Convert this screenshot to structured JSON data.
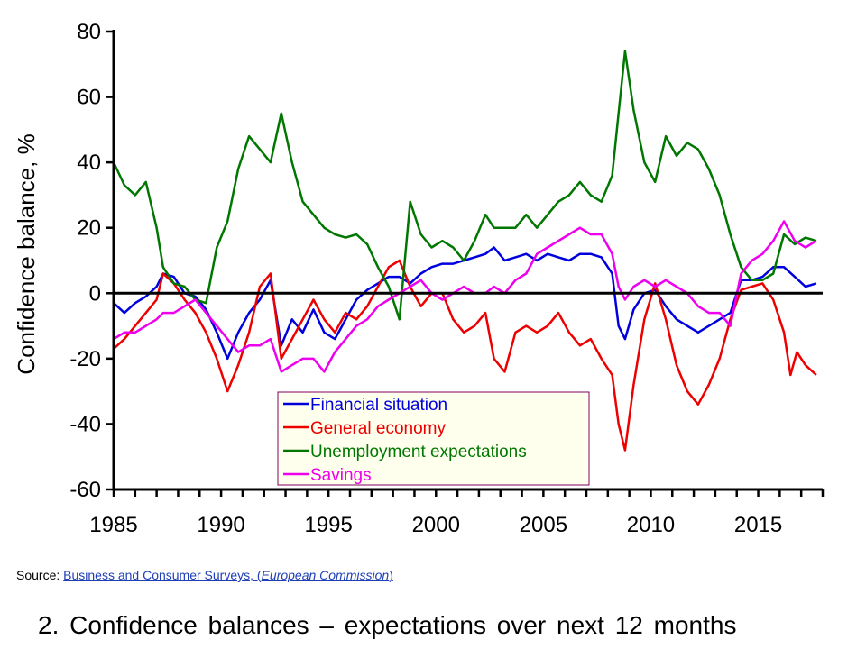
{
  "chart_data": {
    "type": "line",
    "ylabel": "Confidence balance, %",
    "xlabel": "",
    "xlim": [
      1985,
      2018
    ],
    "ylim": [
      -60,
      80
    ],
    "y_ticks": [
      80,
      60,
      40,
      20,
      0,
      -20,
      -40,
      -60
    ],
    "y_tick_labels": [
      "80",
      "60",
      "40",
      "20",
      "0",
      "-20",
      "-40",
      "-60"
    ],
    "x_ticks": [
      1985,
      1990,
      1995,
      2000,
      2005,
      2010,
      2015
    ],
    "x_tick_labels": [
      "1985",
      "1990",
      "1995",
      "2000",
      "2005",
      "2010",
      "2015"
    ],
    "grid": false,
    "legend_position": "bottom-center",
    "series": [
      {
        "name": "Financial situation",
        "color": "#0000dd",
        "points": [
          [
            1985,
            -3
          ],
          [
            1985.5,
            -6
          ],
          [
            1986,
            -3
          ],
          [
            1986.5,
            -1
          ],
          [
            1987,
            2
          ],
          [
            1987.3,
            6
          ],
          [
            1987.8,
            5
          ],
          [
            1988.3,
            0
          ],
          [
            1988.8,
            -1
          ],
          [
            1989.3,
            -5
          ],
          [
            1989.8,
            -12
          ],
          [
            1990.3,
            -20
          ],
          [
            1990.8,
            -12
          ],
          [
            1991.3,
            -6
          ],
          [
            1991.8,
            -2
          ],
          [
            1992.3,
            4
          ],
          [
            1992.8,
            -16
          ],
          [
            1993.3,
            -8
          ],
          [
            1993.8,
            -12
          ],
          [
            1994.3,
            -5
          ],
          [
            1994.8,
            -12
          ],
          [
            1995.3,
            -14
          ],
          [
            1995.8,
            -8
          ],
          [
            1996.3,
            -2
          ],
          [
            1996.8,
            1
          ],
          [
            1997.3,
            3
          ],
          [
            1997.8,
            5
          ],
          [
            1998.3,
            5
          ],
          [
            1998.8,
            3
          ],
          [
            1999.3,
            6
          ],
          [
            1999.8,
            8
          ],
          [
            2000.3,
            9
          ],
          [
            2000.8,
            9
          ],
          [
            2001.3,
            10
          ],
          [
            2001.8,
            11
          ],
          [
            2002.3,
            12
          ],
          [
            2002.7,
            14
          ],
          [
            2003.2,
            10
          ],
          [
            2003.7,
            11
          ],
          [
            2004.2,
            12
          ],
          [
            2004.7,
            10
          ],
          [
            2005.2,
            12
          ],
          [
            2005.7,
            11
          ],
          [
            2006.2,
            10
          ],
          [
            2006.7,
            12
          ],
          [
            2007.2,
            12
          ],
          [
            2007.7,
            11
          ],
          [
            2008.2,
            6
          ],
          [
            2008.5,
            -10
          ],
          [
            2008.8,
            -14
          ],
          [
            2009.2,
            -5
          ],
          [
            2009.7,
            0
          ],
          [
            2010.2,
            1
          ],
          [
            2010.7,
            -4
          ],
          [
            2011.2,
            -8
          ],
          [
            2011.7,
            -10
          ],
          [
            2012.2,
            -12
          ],
          [
            2012.7,
            -10
          ],
          [
            2013.2,
            -8
          ],
          [
            2013.7,
            -6
          ],
          [
            2014.2,
            4
          ],
          [
            2014.7,
            4
          ],
          [
            2015.2,
            5
          ],
          [
            2015.7,
            8
          ],
          [
            2016.2,
            8
          ],
          [
            2016.7,
            5
          ],
          [
            2017.2,
            2
          ],
          [
            2017.7,
            3
          ]
        ]
      },
      {
        "name": "General economy",
        "color": "#ee0000",
        "points": [
          [
            1985,
            -17
          ],
          [
            1985.5,
            -14
          ],
          [
            1986,
            -10
          ],
          [
            1986.5,
            -6
          ],
          [
            1987,
            -2
          ],
          [
            1987.3,
            6
          ],
          [
            1987.8,
            3
          ],
          [
            1988.3,
            -2
          ],
          [
            1988.8,
            -6
          ],
          [
            1989.3,
            -12
          ],
          [
            1989.8,
            -20
          ],
          [
            1990.3,
            -30
          ],
          [
            1990.8,
            -22
          ],
          [
            1991.3,
            -12
          ],
          [
            1991.8,
            2
          ],
          [
            1992.3,
            6
          ],
          [
            1992.8,
            -20
          ],
          [
            1993.3,
            -14
          ],
          [
            1993.8,
            -8
          ],
          [
            1994.3,
            -2
          ],
          [
            1994.8,
            -8
          ],
          [
            1995.3,
            -12
          ],
          [
            1995.8,
            -6
          ],
          [
            1996.3,
            -8
          ],
          [
            1996.8,
            -4
          ],
          [
            1997.3,
            2
          ],
          [
            1997.8,
            8
          ],
          [
            1998.3,
            10
          ],
          [
            1998.8,
            2
          ],
          [
            1999.3,
            -4
          ],
          [
            1999.8,
            0
          ],
          [
            2000.3,
            0
          ],
          [
            2000.8,
            -8
          ],
          [
            2001.3,
            -12
          ],
          [
            2001.8,
            -10
          ],
          [
            2002.3,
            -6
          ],
          [
            2002.7,
            -20
          ],
          [
            2003.2,
            -24
          ],
          [
            2003.7,
            -12
          ],
          [
            2004.2,
            -10
          ],
          [
            2004.7,
            -12
          ],
          [
            2005.2,
            -10
          ],
          [
            2005.7,
            -6
          ],
          [
            2006.2,
            -12
          ],
          [
            2006.7,
            -16
          ],
          [
            2007.2,
            -14
          ],
          [
            2007.7,
            -20
          ],
          [
            2008.2,
            -25
          ],
          [
            2008.5,
            -40
          ],
          [
            2008.8,
            -48
          ],
          [
            2009.2,
            -28
          ],
          [
            2009.7,
            -8
          ],
          [
            2010.2,
            3
          ],
          [
            2010.7,
            -8
          ],
          [
            2011.2,
            -22
          ],
          [
            2011.7,
            -30
          ],
          [
            2012.2,
            -34
          ],
          [
            2012.7,
            -28
          ],
          [
            2013.2,
            -20
          ],
          [
            2013.7,
            -8
          ],
          [
            2014.2,
            1
          ],
          [
            2014.7,
            2
          ],
          [
            2015.2,
            3
          ],
          [
            2015.7,
            -2
          ],
          [
            2016.2,
            -12
          ],
          [
            2016.5,
            -25
          ],
          [
            2016.8,
            -18
          ],
          [
            2017.2,
            -22
          ],
          [
            2017.7,
            -25
          ]
        ]
      },
      {
        "name": "Unemployment expectations",
        "color": "#007700",
        "points": [
          [
            1985,
            40
          ],
          [
            1985.5,
            33
          ],
          [
            1986,
            30
          ],
          [
            1986.5,
            34
          ],
          [
            1987,
            20
          ],
          [
            1987.3,
            8
          ],
          [
            1987.8,
            3
          ],
          [
            1988.3,
            2
          ],
          [
            1988.8,
            -2
          ],
          [
            1989.3,
            -3
          ],
          [
            1989.8,
            14
          ],
          [
            1990.3,
            22
          ],
          [
            1990.8,
            38
          ],
          [
            1991.3,
            48
          ],
          [
            1991.8,
            44
          ],
          [
            1992.3,
            40
          ],
          [
            1992.8,
            55
          ],
          [
            1993.3,
            40
          ],
          [
            1993.8,
            28
          ],
          [
            1994.3,
            24
          ],
          [
            1994.8,
            20
          ],
          [
            1995.3,
            18
          ],
          [
            1995.8,
            17
          ],
          [
            1996.3,
            18
          ],
          [
            1996.8,
            15
          ],
          [
            1997.3,
            8
          ],
          [
            1997.8,
            2
          ],
          [
            1998.3,
            -8
          ],
          [
            1998.8,
            28
          ],
          [
            1999.3,
            18
          ],
          [
            1999.8,
            14
          ],
          [
            2000.3,
            16
          ],
          [
            2000.8,
            14
          ],
          [
            2001.3,
            10
          ],
          [
            2001.8,
            16
          ],
          [
            2002.3,
            24
          ],
          [
            2002.7,
            20
          ],
          [
            2003.2,
            20
          ],
          [
            2003.7,
            20
          ],
          [
            2004.2,
            24
          ],
          [
            2004.7,
            20
          ],
          [
            2005.2,
            24
          ],
          [
            2005.7,
            28
          ],
          [
            2006.2,
            30
          ],
          [
            2006.7,
            34
          ],
          [
            2007.2,
            30
          ],
          [
            2007.7,
            28
          ],
          [
            2008.2,
            36
          ],
          [
            2008.5,
            55
          ],
          [
            2008.8,
            74
          ],
          [
            2009.2,
            56
          ],
          [
            2009.7,
            40
          ],
          [
            2010.2,
            34
          ],
          [
            2010.7,
            48
          ],
          [
            2011.2,
            42
          ],
          [
            2011.7,
            46
          ],
          [
            2012.2,
            44
          ],
          [
            2012.7,
            38
          ],
          [
            2013.2,
            30
          ],
          [
            2013.7,
            18
          ],
          [
            2014.2,
            8
          ],
          [
            2014.7,
            4
          ],
          [
            2015.2,
            4
          ],
          [
            2015.7,
            6
          ],
          [
            2016.2,
            18
          ],
          [
            2016.7,
            15
          ],
          [
            2017.2,
            17
          ],
          [
            2017.7,
            16
          ]
        ]
      },
      {
        "name": "Savings",
        "color": "#ee00ee",
        "points": [
          [
            1985,
            -14
          ],
          [
            1985.5,
            -12
          ],
          [
            1986,
            -12
          ],
          [
            1986.5,
            -10
          ],
          [
            1987,
            -8
          ],
          [
            1987.3,
            -6
          ],
          [
            1987.8,
            -6
          ],
          [
            1988.3,
            -4
          ],
          [
            1988.8,
            -2
          ],
          [
            1989.3,
            -6
          ],
          [
            1989.8,
            -10
          ],
          [
            1990.3,
            -14
          ],
          [
            1990.8,
            -18
          ],
          [
            1991.3,
            -16
          ],
          [
            1991.8,
            -16
          ],
          [
            1992.3,
            -14
          ],
          [
            1992.8,
            -24
          ],
          [
            1993.3,
            -22
          ],
          [
            1993.8,
            -20
          ],
          [
            1994.3,
            -20
          ],
          [
            1994.8,
            -24
          ],
          [
            1995.3,
            -18
          ],
          [
            1995.8,
            -14
          ],
          [
            1996.3,
            -10
          ],
          [
            1996.8,
            -8
          ],
          [
            1997.3,
            -4
          ],
          [
            1997.8,
            -2
          ],
          [
            1998.3,
            0
          ],
          [
            1998.8,
            2
          ],
          [
            1999.3,
            4
          ],
          [
            1999.8,
            0
          ],
          [
            2000.3,
            -2
          ],
          [
            2000.8,
            0
          ],
          [
            2001.3,
            2
          ],
          [
            2001.8,
            0
          ],
          [
            2002.3,
            0
          ],
          [
            2002.7,
            2
          ],
          [
            2003.2,
            0
          ],
          [
            2003.7,
            4
          ],
          [
            2004.2,
            6
          ],
          [
            2004.7,
            12
          ],
          [
            2005.2,
            14
          ],
          [
            2005.7,
            16
          ],
          [
            2006.2,
            18
          ],
          [
            2006.7,
            20
          ],
          [
            2007.2,
            18
          ],
          [
            2007.7,
            18
          ],
          [
            2008.2,
            12
          ],
          [
            2008.5,
            2
          ],
          [
            2008.8,
            -2
          ],
          [
            2009.2,
            2
          ],
          [
            2009.7,
            4
          ],
          [
            2010.2,
            2
          ],
          [
            2010.7,
            4
          ],
          [
            2011.2,
            2
          ],
          [
            2011.7,
            0
          ],
          [
            2012.2,
            -4
          ],
          [
            2012.7,
            -6
          ],
          [
            2013.2,
            -6
          ],
          [
            2013.7,
            -10
          ],
          [
            2014.2,
            6
          ],
          [
            2014.7,
            10
          ],
          [
            2015.2,
            12
          ],
          [
            2015.7,
            16
          ],
          [
            2016.2,
            22
          ],
          [
            2016.7,
            16
          ],
          [
            2017.2,
            14
          ],
          [
            2017.7,
            16
          ]
        ]
      }
    ]
  },
  "axis_color": "#000000",
  "legend_background": "#ffffee",
  "legend_border": "#800060",
  "source": {
    "prefix": "Source: ",
    "link_text": "Business and Consumer Surveys, (",
    "link_italic": "European Commission",
    "link_close": ")"
  },
  "caption": "2. Confidence balances – expectations over next 12 months"
}
